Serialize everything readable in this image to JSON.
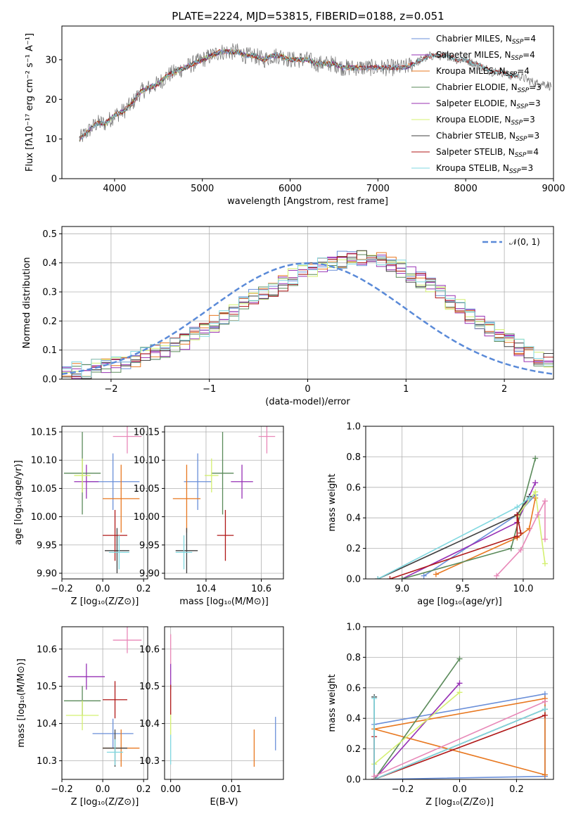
{
  "figure": {
    "title": "PLATE=2224, MJD=53815, FIBERID=0188, z=0.051"
  },
  "colors": {
    "Chabrier MILES": "#6a8fd9",
    "Salpeter MILES": "#9630b5",
    "Kroupa MILES": "#e87820",
    "Chabrier ELODIE": "#5a8a5a",
    "Salpeter ELODIE": "#9a30b0",
    "Kroupa ELODIE": "#d4f070",
    "Chabrier STELIB": "#404040",
    "Salpeter STELIB": "#b01818",
    "Kroupa STELIB": "#80d8e0",
    "pink": "#e888b8",
    "normal": "#5a8ad8"
  },
  "chart_data": [
    {
      "id": "spectrum",
      "type": "line",
      "title": "PLATE=2224, MJD=53815, FIBERID=0188, z=0.051",
      "xlabel": "wavelength [Angstrom, rest frame]",
      "ylabel": "Flux [fλ10⁻¹⁷ erg cm⁻² s⁻¹ A⁻¹]",
      "xlim": [
        3400,
        9000
      ],
      "ylim": [
        0,
        38.5
      ],
      "xticks": [
        "4000",
        "5000",
        "6000",
        "7000",
        "8000",
        "9000"
      ],
      "xtick_values": [
        4000,
        5000,
        6000,
        7000,
        8000,
        9000
      ],
      "yticks": [
        "0",
        "10",
        "20",
        "30"
      ],
      "ytick_values": [
        0,
        10,
        20,
        30
      ],
      "legend_position": "top-right",
      "continuum": {
        "x": [
          3600,
          3700,
          3800,
          3900,
          4000,
          4100,
          4200,
          4300,
          4400,
          4500,
          4600,
          4700,
          4800,
          4900,
          5000,
          5100,
          5200,
          5300,
          5400,
          5500,
          5600,
          5700,
          5800,
          5900,
          6000,
          6100,
          6200,
          6300,
          6400,
          6500,
          6600,
          6700,
          6800,
          6900,
          7000,
          7100,
          7200,
          7300,
          7400,
          7500,
          7600,
          7700,
          7800,
          7900,
          8000,
          8100,
          8200,
          8300,
          8400,
          8500,
          8600,
          8700,
          8800,
          8900,
          9000
        ],
        "y": [
          10,
          12,
          14,
          14,
          16,
          17,
          19,
          22,
          23,
          24,
          26,
          27,
          28,
          29,
          30,
          31,
          32,
          32,
          32,
          31,
          31,
          30,
          31,
          31,
          30,
          30,
          30,
          29,
          29,
          29,
          28,
          28,
          28,
          28,
          28,
          28,
          28,
          28,
          29,
          30,
          31,
          31,
          31,
          30,
          30,
          29,
          28,
          27,
          27,
          26,
          26,
          25,
          24,
          24,
          23
        ]
      },
      "series": [
        {
          "label": "Chabrier MILES, N",
          "sub": "SSP",
          "suffix": "=4",
          "color": "#6a8fd9",
          "xmax": 7400
        },
        {
          "label": "Salpeter MILES, N",
          "sub": "SSP",
          "suffix": "=4",
          "color": "#9630b5",
          "xmax": 7400
        },
        {
          "label": "Kroupa MILES, N",
          "sub": "SSP",
          "suffix": "=4",
          "color": "#e87820",
          "xmax": 7400
        },
        {
          "label": "Chabrier ELODIE, N",
          "sub": "SSP",
          "suffix": "=3",
          "color": "#5a8a5a",
          "xmax": 6800
        },
        {
          "label": "Salpeter ELODIE, N",
          "sub": "SSP",
          "suffix": "=3",
          "color": "#9a30b0",
          "xmax": 6800
        },
        {
          "label": "Kroupa ELODIE, N",
          "sub": "SSP",
          "suffix": "=3",
          "color": "#d4f070",
          "xmax": 6800
        },
        {
          "label": "Chabrier STELIB, N",
          "sub": "SSP",
          "suffix": "=3",
          "color": "#404040",
          "xmax": 8600
        },
        {
          "label": "Salpeter STELIB, N",
          "sub": "SSP",
          "suffix": "=4",
          "color": "#b01818",
          "xmax": 8600
        },
        {
          "label": "Kroupa STELIB, N",
          "sub": "SSP",
          "suffix": "=3",
          "color": "#80d8e0",
          "xmax": 8600
        }
      ]
    },
    {
      "id": "residuals",
      "type": "bar",
      "xlabel": "(data-model)/error",
      "ylabel": "Normed distribution",
      "xlim": [
        -2.5,
        2.5
      ],
      "ylim": [
        0,
        0.525
      ],
      "xticks": [
        "−2",
        "−1",
        "0",
        "1",
        "2"
      ],
      "xtick_values": [
        -2,
        -1,
        0,
        1,
        2
      ],
      "yticks": [
        "0.0",
        "0.1",
        "0.2",
        "0.3",
        "0.4",
        "0.5"
      ],
      "ytick_values": [
        0,
        0.1,
        0.2,
        0.3,
        0.4,
        0.5
      ],
      "grid": true,
      "legend": "𝒩(0, 1)",
      "legend_position": "top-right",
      "bin_width": 0.1,
      "bins_from": -2.5,
      "values_base": [
        0.02,
        0.03,
        0.03,
        0.04,
        0.05,
        0.05,
        0.06,
        0.07,
        0.08,
        0.09,
        0.1,
        0.12,
        0.13,
        0.15,
        0.17,
        0.19,
        0.21,
        0.23,
        0.26,
        0.28,
        0.3,
        0.31,
        0.33,
        0.35,
        0.37,
        0.38,
        0.39,
        0.4,
        0.41,
        0.42,
        0.42,
        0.41,
        0.41,
        0.39,
        0.38,
        0.36,
        0.34,
        0.32,
        0.3,
        0.27,
        0.25,
        0.22,
        0.2,
        0.17,
        0.15,
        0.13,
        0.11,
        0.09,
        0.07,
        0.06
      ]
    },
    {
      "id": "z-age",
      "type": "scatter",
      "xlabel": "Z [log₁₀(Z/Z⊙)]",
      "ylabel": "age  [log₁₀(age/yr)]",
      "xlim": [
        -0.2,
        0.22
      ],
      "ylim": [
        9.89,
        10.16
      ],
      "xticks": [
        "−0.2",
        "0.0",
        "0.2"
      ],
      "xtick_values": [
        -0.2,
        0.0,
        0.2
      ],
      "yticks": [
        "9.90",
        "9.95",
        "10.00",
        "10.05",
        "10.10",
        "10.15"
      ],
      "ytick_values": [
        9.9,
        9.95,
        10.0,
        10.05,
        10.1,
        10.15
      ],
      "points": [
        {
          "color": "#6a8fd9",
          "x": 0.05,
          "y": 10.062,
          "xerr": 0.13,
          "yerr": 0.05
        },
        {
          "color": "#9630b5",
          "x": -0.08,
          "y": 10.062,
          "xerr": 0.06,
          "yerr": 0.03
        },
        {
          "color": "#e87820",
          "x": 0.09,
          "y": 10.032,
          "xerr": 0.09,
          "yerr": 0.06
        },
        {
          "color": "#5a8a5a",
          "x": -0.1,
          "y": 10.077,
          "xerr": 0.09,
          "yerr": 0.073
        },
        {
          "color": "#d4f070",
          "x": -0.1,
          "y": 10.073,
          "xerr": 0.04,
          "yerr": 0.03
        },
        {
          "color": "#404040",
          "x": 0.07,
          "y": 9.94,
          "xerr": 0.06,
          "yerr": 0.04
        },
        {
          "color": "#b01818",
          "x": 0.06,
          "y": 9.967,
          "xerr": 0.06,
          "yerr": 0.045
        },
        {
          "color": "#80d8e0",
          "x": 0.08,
          "y": 9.937,
          "xerr": 0.05,
          "yerr": 0.03
        },
        {
          "color": "#e888b8",
          "x": 0.12,
          "y": 10.142,
          "xerr": 0.07,
          "yerr": 0.03
        }
      ]
    },
    {
      "id": "mass-age",
      "type": "scatter",
      "xlabel": "mass [log₁₀(M/M⊙)]",
      "ylabel": "",
      "xlim": [
        10.25,
        10.68
      ],
      "ylim": [
        9.89,
        10.16
      ],
      "xticks": [
        "10.4",
        "10.6"
      ],
      "xtick_values": [
        10.4,
        10.6
      ],
      "yticks": [
        "9.90",
        "9.95",
        "10.00",
        "10.05",
        "10.10",
        "10.15"
      ],
      "ytick_values": [
        9.9,
        9.95,
        10.0,
        10.05,
        10.1,
        10.15
      ],
      "points": [
        {
          "color": "#6a8fd9",
          "x": 10.37,
          "y": 10.062,
          "xerr": 0.05,
          "yerr": 0.05
        },
        {
          "color": "#9630b5",
          "x": 10.53,
          "y": 10.062,
          "xerr": 0.04,
          "yerr": 0.03
        },
        {
          "color": "#e87820",
          "x": 10.33,
          "y": 10.032,
          "xerr": 0.05,
          "yerr": 0.06
        },
        {
          "color": "#5a8a5a",
          "x": 10.46,
          "y": 10.077,
          "xerr": 0.04,
          "yerr": 0.073
        },
        {
          "color": "#d4f070",
          "x": 10.42,
          "y": 10.073,
          "xerr": 0.025,
          "yerr": 0.03
        },
        {
          "color": "#404040",
          "x": 10.33,
          "y": 9.94,
          "xerr": 0.04,
          "yerr": 0.04
        },
        {
          "color": "#b01818",
          "x": 10.47,
          "y": 9.967,
          "xerr": 0.03,
          "yerr": 0.045
        },
        {
          "color": "#80d8e0",
          "x": 10.32,
          "y": 9.937,
          "xerr": 0.03,
          "yerr": 0.03
        },
        {
          "color": "#e888b8",
          "x": 10.62,
          "y": 10.142,
          "xerr": 0.03,
          "yerr": 0.03
        }
      ]
    },
    {
      "id": "age-weight",
      "type": "line",
      "xlabel": "age  [log₁₀(age/yr)]",
      "ylabel": "mass weight",
      "xlim": [
        8.7,
        10.25
      ],
      "ylim": [
        0,
        1.0
      ],
      "xticks": [
        "9.0",
        "9.5",
        "10.0"
      ],
      "xtick_values": [
        9.0,
        9.5,
        10.0
      ],
      "yticks": [
        "0.0",
        "0.2",
        "0.4",
        "0.6",
        "0.8",
        "1.0"
      ],
      "ytick_values": [
        0,
        0.2,
        0.4,
        0.6,
        0.8,
        1.0
      ],
      "series": [
        {
          "color": "#6a8fd9",
          "x": [
            9.18,
            9.95,
            10.1,
            10.1
          ],
          "y": [
            0.02,
            0.42,
            0.55,
            0.55
          ]
        },
        {
          "color": "#9630b5",
          "x": [
            9.0,
            9.95,
            10.1
          ],
          "y": [
            0.0,
            0.37,
            0.63
          ]
        },
        {
          "color": "#e87820",
          "x": [
            9.28,
            9.95,
            10.05,
            10.1
          ],
          "y": [
            0.03,
            0.27,
            0.33,
            0.53
          ]
        },
        {
          "color": "#5a8a5a",
          "x": [
            9.0,
            9.9,
            10.1
          ],
          "y": [
            0.0,
            0.2,
            0.79
          ]
        },
        {
          "color": "#d4f070",
          "x": [
            9.95,
            10.1,
            10.18
          ],
          "y": [
            0.41,
            0.57,
            0.1
          ]
        },
        {
          "color": "#404040",
          "x": [
            8.8,
            9.95,
            10.05
          ],
          "y": [
            0.0,
            0.42,
            0.54
          ]
        },
        {
          "color": "#b01818",
          "x": [
            8.9,
            9.95,
            9.95,
            9.98
          ],
          "y": [
            0.0,
            0.28,
            0.42,
            0.3
          ]
        },
        {
          "color": "#80d8e0",
          "x": [
            8.8,
            9.95,
            10.05
          ],
          "y": [
            0.0,
            0.47,
            0.53
          ]
        },
        {
          "color": "#e888b8",
          "x": [
            9.78,
            9.98,
            10.12,
            10.18,
            10.18
          ],
          "y": [
            0.02,
            0.19,
            0.42,
            0.51,
            0.26
          ]
        }
      ]
    },
    {
      "id": "z-mass",
      "type": "scatter",
      "xlabel": "Z [log₁₀(Z/Z⊙)]",
      "ylabel": "mass [log₁₀(M/M⊙)]",
      "xlim": [
        -0.2,
        0.22
      ],
      "ylim": [
        10.25,
        10.66
      ],
      "xticks": [
        "−0.2",
        "0.0",
        "0.2"
      ],
      "xtick_values": [
        -0.2,
        0.0,
        0.2
      ],
      "yticks": [
        "10.3",
        "10.4",
        "10.5",
        "10.6"
      ],
      "ytick_values": [
        10.3,
        10.4,
        10.5,
        10.6
      ],
      "points": [
        {
          "color": "#6a8fd9",
          "x": 0.05,
          "y": 10.373,
          "xerr": 0.1,
          "yerr": 0.04
        },
        {
          "color": "#9630b5",
          "x": -0.08,
          "y": 10.526,
          "xerr": 0.09,
          "yerr": 0.035
        },
        {
          "color": "#e87820",
          "x": 0.09,
          "y": 10.334,
          "xerr": 0.09,
          "yerr": 0.05
        },
        {
          "color": "#5a8a5a",
          "x": -0.1,
          "y": 10.461,
          "xerr": 0.09,
          "yerr": 0.04
        },
        {
          "color": "#d4f070",
          "x": -0.1,
          "y": 10.422,
          "xerr": 0.08,
          "yerr": 0.04
        },
        {
          "color": "#404040",
          "x": 0.06,
          "y": 10.334,
          "xerr": 0.06,
          "yerr": 0.05
        },
        {
          "color": "#b01818",
          "x": 0.06,
          "y": 10.464,
          "xerr": 0.06,
          "yerr": 0.05
        },
        {
          "color": "#80d8e0",
          "x": 0.06,
          "y": 10.323,
          "xerr": 0.04,
          "yerr": 0.035
        },
        {
          "color": "#e888b8",
          "x": 0.12,
          "y": 10.624,
          "xerr": 0.07,
          "yerr": 0.035
        }
      ]
    },
    {
      "id": "ebv-mass",
      "type": "scatter",
      "xlabel": "E(B-V)",
      "ylabel": "",
      "xlim": [
        -0.001,
        0.0185
      ],
      "ylim": [
        10.25,
        10.66
      ],
      "xticks": [
        "0.00",
        "0.01"
      ],
      "xtick_values": [
        0.0,
        0.01
      ],
      "yticks": [
        "10.3",
        "10.4",
        "10.5",
        "10.6"
      ],
      "ytick_values": [
        10.3,
        10.4,
        10.5,
        10.6
      ],
      "points": [
        {
          "color": "#6a8fd9",
          "x": 0.0172,
          "y": 10.373,
          "xerr": 0,
          "yerr": 0.045
        },
        {
          "color": "#e87820",
          "x": 0.0137,
          "y": 10.334,
          "xerr": 0,
          "yerr": 0.05
        },
        {
          "color": "#9630b5",
          "x": 0.0,
          "y": 10.526,
          "xerr": 0,
          "yerr": 0.035
        },
        {
          "color": "#e888b8",
          "x": 0.0,
          "y": 10.6,
          "xerr": 0,
          "yerr": 0.04
        },
        {
          "color": "#d4f070",
          "x": 0.0,
          "y": 10.4,
          "xerr": 0,
          "yerr": 0.03
        },
        {
          "color": "#80d8e0",
          "x": 0.0,
          "y": 10.33,
          "xerr": 0,
          "yerr": 0.04
        },
        {
          "color": "#b01818",
          "x": 0.0,
          "y": 10.464,
          "xerr": 0,
          "yerr": 0.04
        }
      ]
    },
    {
      "id": "z-weight",
      "type": "line",
      "xlabel": "Z [log₁₀(Z/Z⊙)]",
      "ylabel": "mass weight",
      "xlim": [
        -0.33,
        0.33
      ],
      "ylim": [
        0,
        1.0
      ],
      "xticks": [
        "−0.2",
        "0.0",
        "0.2"
      ],
      "xtick_values": [
        -0.2,
        0.0,
        0.2
      ],
      "yticks": [
        "0.0",
        "0.2",
        "0.4",
        "0.6",
        "0.8",
        "1.0"
      ],
      "ytick_values": [
        0,
        0.2,
        0.4,
        0.6,
        0.8,
        1.0
      ],
      "series": [
        {
          "color": "#6a8fd9",
          "x": [
            0.3,
            -0.3,
            -0.3,
            0.3,
            0.3
          ],
          "y": [
            0.02,
            0.0,
            0.36,
            0.56,
            0.02
          ]
        },
        {
          "color": "#9630b5",
          "x": [
            -0.3,
            0.0
          ],
          "y": [
            0.0,
            0.63
          ]
        },
        {
          "color": "#e87820",
          "x": [
            0.3,
            -0.3,
            0.3,
            0.3
          ],
          "y": [
            0.03,
            0.33,
            0.53,
            0.03
          ]
        },
        {
          "color": "#5a8a5a",
          "x": [
            -0.3,
            0.0
          ],
          "y": [
            0.0,
            0.79
          ]
        },
        {
          "color": "#d4f070",
          "x": [
            -0.3,
            0.0
          ],
          "y": [
            0.1,
            0.57
          ]
        },
        {
          "color": "#404040",
          "x": [
            -0.3,
            -0.3,
            0.3
          ],
          "y": [
            0.54,
            0.0,
            0.46
          ]
        },
        {
          "color": "#b01818",
          "x": [
            -0.3,
            -0.3,
            0.3
          ],
          "y": [
            0.28,
            0.0,
            0.42
          ]
        },
        {
          "color": "#80d8e0",
          "x": [
            -0.3,
            -0.3,
            0.3
          ],
          "y": [
            0.53,
            0.0,
            0.46
          ]
        },
        {
          "color": "#e888b8",
          "x": [
            -0.3,
            0.3
          ],
          "y": [
            0.02,
            0.51
          ]
        }
      ]
    }
  ]
}
